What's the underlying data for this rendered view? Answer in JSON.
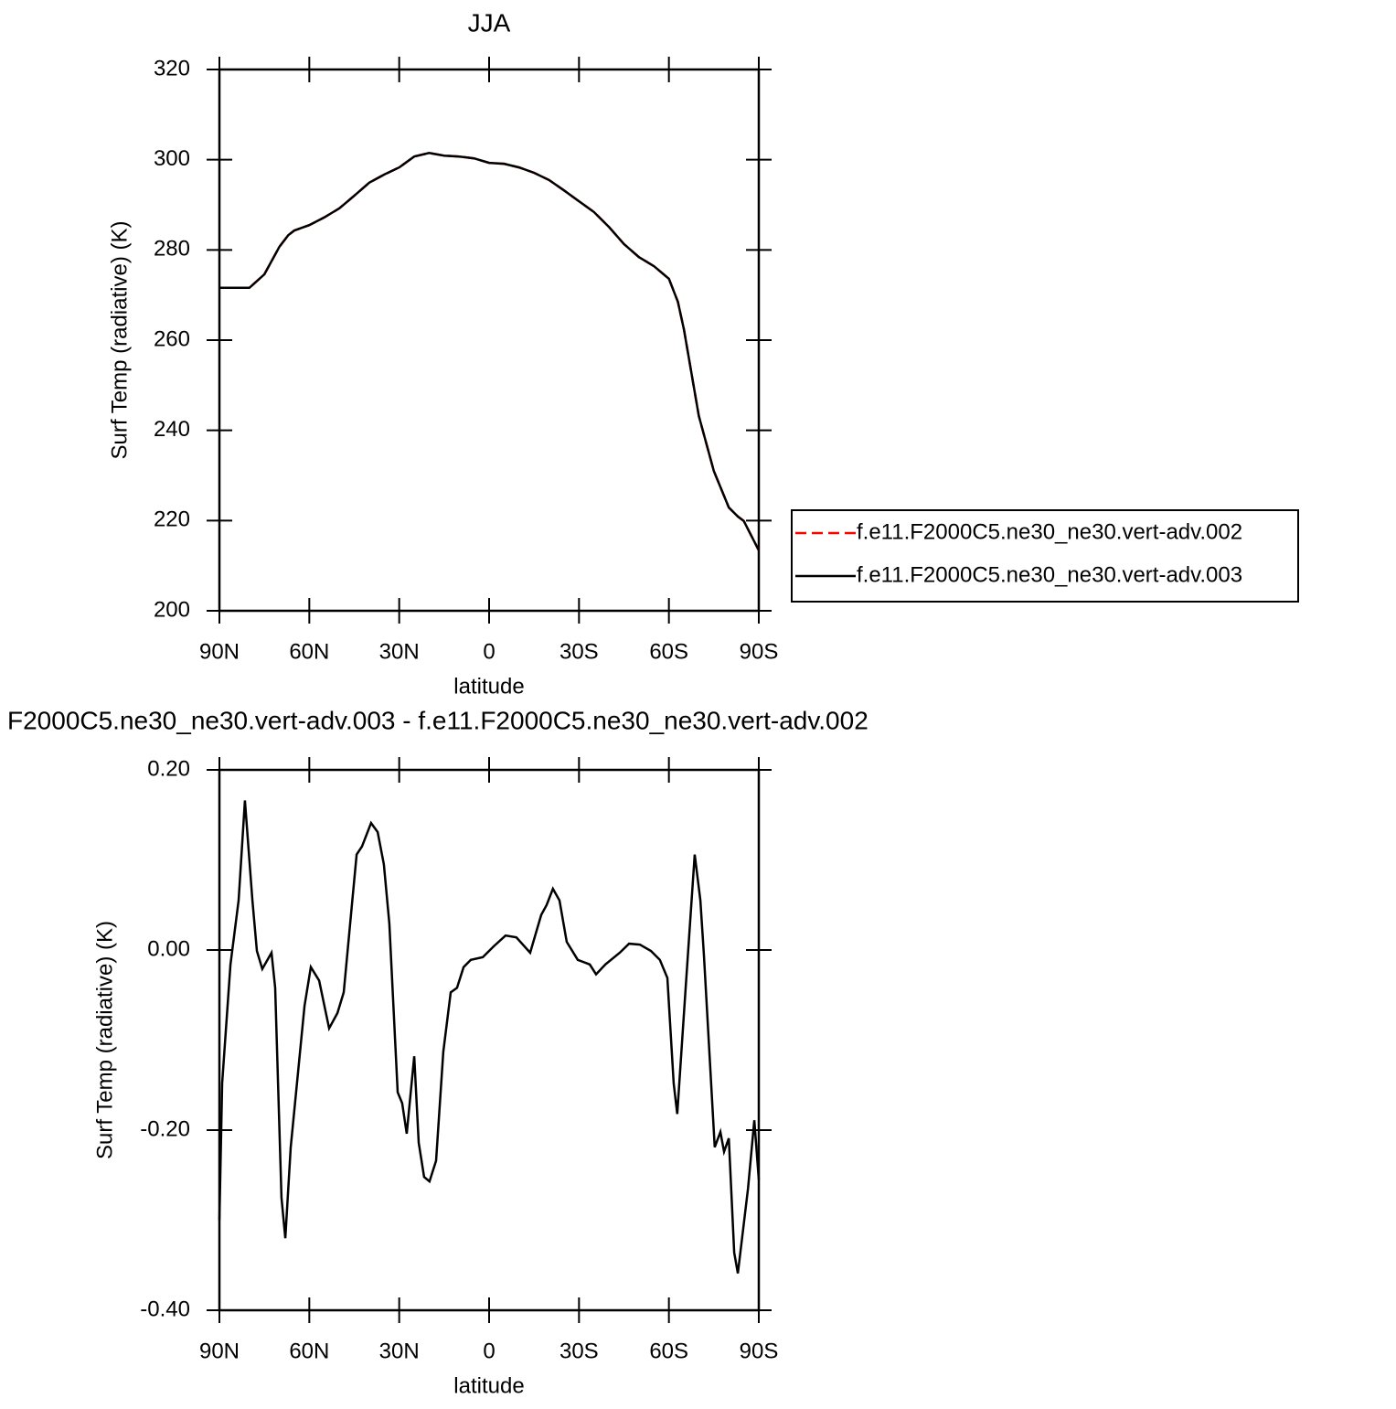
{
  "chart_data": [
    {
      "type": "line",
      "title": "JJA",
      "xlabel": "latitude",
      "ylabel": "Surf Temp (radiative) (K)",
      "x": [
        90,
        85,
        80,
        75,
        70,
        67,
        65,
        60,
        55,
        50,
        45,
        40,
        35,
        30,
        25,
        20,
        15,
        10,
        5,
        0,
        -5,
        -10,
        -15,
        -20,
        -25,
        -30,
        -35,
        -40,
        -45,
        -50,
        -55,
        -60,
        -63,
        -65,
        -70,
        -75,
        -80,
        -83,
        -85,
        -90
      ],
      "series": [
        {
          "name": "f.e11.F2000C5.ne30_ne30.vert-adv.002",
          "color": "#ff0000",
          "linestyle": "dashed",
          "values": [
            271.6,
            271.6,
            271.6,
            274.6,
            280.7,
            283.3,
            284.3,
            285.5,
            287.2,
            289.2,
            292.0,
            294.9,
            296.7,
            298.3,
            300.7,
            301.5,
            300.9,
            300.7,
            300.3,
            299.3,
            299.1,
            298.3,
            297.1,
            295.5,
            293.2,
            290.8,
            288.4,
            285.1,
            281.3,
            278.4,
            276.4,
            273.6,
            268.5,
            262.4,
            243.2,
            231.0,
            222.9,
            220.9,
            219.9,
            213.4
          ]
        },
        {
          "name": "f.e11.F2000C5.ne30_ne30.vert-adv.003",
          "color": "#000000",
          "linestyle": "solid",
          "values": [
            271.6,
            271.6,
            271.6,
            274.6,
            280.7,
            283.3,
            284.3,
            285.5,
            287.2,
            289.2,
            292.0,
            294.9,
            296.7,
            298.3,
            300.7,
            301.5,
            300.9,
            300.7,
            300.3,
            299.3,
            299.1,
            298.3,
            297.1,
            295.5,
            293.2,
            290.8,
            288.4,
            285.1,
            281.3,
            278.4,
            276.4,
            273.6,
            268.5,
            262.4,
            243.2,
            231.0,
            222.9,
            220.9,
            219.9,
            213.4
          ]
        }
      ],
      "xlim": [
        90,
        -90
      ],
      "xticks": [
        {
          "value": 90,
          "label": "90N"
        },
        {
          "value": 60,
          "label": "60N"
        },
        {
          "value": 30,
          "label": "30N"
        },
        0,
        {
          "value": -30,
          "label": "30S"
        },
        {
          "value": -60,
          "label": "60S"
        },
        {
          "value": -90,
          "label": "90S"
        }
      ],
      "ylim": [
        200,
        320
      ],
      "yticks": [
        200,
        220,
        240,
        260,
        280,
        300,
        320
      ],
      "legend": "right"
    },
    {
      "type": "line",
      "title": "F2000C5.ne30_ne30.vert-adv.003 - f.e11.F2000C5.ne30_ne30.vert-adv.002",
      "xlabel": "latitude",
      "ylabel": "Surf Temp (radiative) (K)",
      "x": [
        90,
        89.1,
        86.3,
        83.6,
        81.5,
        79,
        77.5,
        75.7,
        72.6,
        71.4,
        69.3,
        68.0,
        66.2,
        61.6,
        59.5,
        56.7,
        53.4,
        50.6,
        48.5,
        46.1,
        44.2,
        42.4,
        39.4,
        37.2,
        35.1,
        33.3,
        30.5,
        29,
        27.5,
        25.0,
        23.5,
        21.7,
        19.9,
        17.7,
        15.3,
        12.8,
        10.7,
        8.5,
        6.1,
        2.1,
        -1.5,
        -5.5,
        -9.1,
        -13.7,
        -17.4,
        -19.2,
        -21.3,
        -23.5,
        -25.9,
        -29.6,
        -33.6,
        -35.7,
        -38.8,
        -43.6,
        -46.7,
        -50.3,
        -54,
        -57,
        -59.5,
        -61.6,
        -62.8,
        -65.6,
        -68.6,
        -70.5,
        -71.7,
        -75.3,
        -77.2,
        -78.4,
        -80,
        -81.8,
        -83,
        -86.4,
        -88.5,
        -90
      ],
      "values": [
        -0.3,
        -0.148,
        -0.016,
        0.055,
        0.166,
        0.055,
        -0.001,
        -0.021,
        -0.003,
        -0.042,
        -0.275,
        -0.32,
        -0.219,
        -0.062,
        -0.019,
        -0.034,
        -0.087,
        -0.07,
        -0.047,
        0.039,
        0.106,
        0.115,
        0.141,
        0.131,
        0.095,
        0.029,
        -0.158,
        -0.17,
        -0.204,
        -0.118,
        -0.214,
        -0.252,
        -0.257,
        -0.234,
        -0.113,
        -0.047,
        -0.042,
        -0.019,
        -0.011,
        -0.008,
        0.004,
        0.016,
        0.014,
        -0.003,
        0.039,
        0.05,
        0.068,
        0.055,
        0.009,
        -0.011,
        -0.016,
        -0.027,
        -0.016,
        -0.003,
        0.007,
        0.006,
        -0.001,
        -0.011,
        -0.031,
        -0.148,
        -0.182,
        -0.042,
        0.106,
        0.055,
        -0.006,
        -0.219,
        -0.202,
        -0.224,
        -0.209,
        -0.336,
        -0.359,
        -0.265,
        -0.189,
        -0.255
      ],
      "color": "#000000",
      "xlim": [
        90,
        -90
      ],
      "xticks": [
        {
          "value": 90,
          "label": "90N"
        },
        {
          "value": 60,
          "label": "60N"
        },
        {
          "value": 30,
          "label": "30N"
        },
        0,
        {
          "value": -30,
          "label": "30S"
        },
        {
          "value": -60,
          "label": "60S"
        },
        {
          "value": -90,
          "label": "90S"
        }
      ],
      "ylim": [
        -0.4,
        0.2
      ],
      "yticks": [
        {
          "value": -0.4,
          "label": "-0.40"
        },
        {
          "value": -0.2,
          "label": "-0.20"
        },
        {
          "value": 0,
          "label": "0.00"
        },
        {
          "value": 0.2,
          "label": "0.20"
        }
      ]
    }
  ]
}
